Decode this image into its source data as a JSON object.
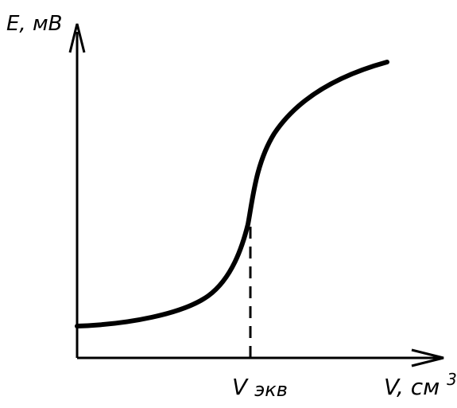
{
  "diagram": {
    "y_axis_label": "E, мВ",
    "x_axis_label": "V, см",
    "x_axis_label_superscript": "3",
    "equivalence_label_main": "V",
    "equivalence_label_sub": "экв",
    "curve_type": "sigmoid titration curve",
    "equivalence_marker_style": "dashed vertical line",
    "stroke_color": "#000000",
    "background_color": "#ffffff"
  }
}
